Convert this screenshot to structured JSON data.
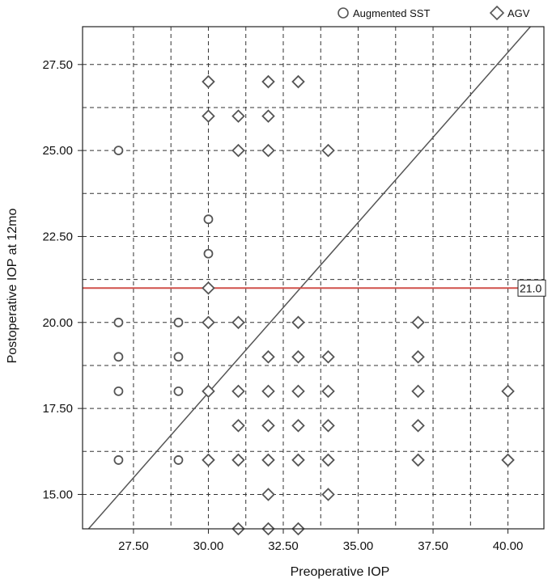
{
  "chart_data": {
    "type": "scatter",
    "xlabel": "Preoperative IOP",
    "ylabel": "Postoperative IOP at 12mo",
    "xlim": [
      25.8,
      41.2
    ],
    "ylim": [
      14.0,
      28.6
    ],
    "x_ticks": [
      27.5,
      30.0,
      32.5,
      35.0,
      37.5,
      40.0
    ],
    "x_tick_labels": [
      "27.50",
      "30.00",
      "32.50",
      "35.00",
      "37.50",
      "40.00"
    ],
    "y_ticks": [
      15.0,
      17.5,
      20.0,
      22.5,
      25.0,
      27.5
    ],
    "y_tick_labels": [
      "15.00",
      "17.50",
      "20.00",
      "22.50",
      "25.00",
      "27.50"
    ],
    "grid": true,
    "legend_position": "top-right",
    "reference_line": {
      "y": 21.0,
      "label": "21.0",
      "color": "#d0504a"
    },
    "identity_line": {
      "from": [
        26,
        14
      ],
      "to": [
        40.75,
        28.6
      ]
    },
    "series": [
      {
        "name": "Augmented SST",
        "marker": "circle",
        "points": [
          [
            27,
            25
          ],
          [
            27,
            20
          ],
          [
            27,
            19
          ],
          [
            27,
            18
          ],
          [
            27,
            16
          ],
          [
            29,
            20
          ],
          [
            29,
            19
          ],
          [
            29,
            18
          ],
          [
            29,
            16
          ],
          [
            30,
            23
          ],
          [
            30,
            22
          ]
        ]
      },
      {
        "name": "AGV",
        "marker": "diamond",
        "points": [
          [
            30,
            27
          ],
          [
            32,
            27
          ],
          [
            33,
            27
          ],
          [
            30,
            26
          ],
          [
            31,
            26
          ],
          [
            32,
            26
          ],
          [
            31,
            25
          ],
          [
            32,
            25
          ],
          [
            34,
            25
          ],
          [
            30,
            21
          ],
          [
            30,
            20
          ],
          [
            31,
            20
          ],
          [
            33,
            20
          ],
          [
            37,
            20
          ],
          [
            32,
            19
          ],
          [
            33,
            19
          ],
          [
            34,
            19
          ],
          [
            37,
            19
          ],
          [
            30,
            18
          ],
          [
            31,
            18
          ],
          [
            32,
            18
          ],
          [
            33,
            18
          ],
          [
            34,
            18
          ],
          [
            37,
            18
          ],
          [
            40,
            18
          ],
          [
            31,
            17
          ],
          [
            32,
            17
          ],
          [
            33,
            17
          ],
          [
            34,
            17
          ],
          [
            37,
            17
          ],
          [
            30,
            16
          ],
          [
            31,
            16
          ],
          [
            32,
            16
          ],
          [
            33,
            16
          ],
          [
            34,
            16
          ],
          [
            37,
            16
          ],
          [
            40,
            16
          ],
          [
            32,
            15
          ],
          [
            34,
            15
          ],
          [
            31,
            14
          ],
          [
            32,
            14
          ],
          [
            33,
            14
          ]
        ]
      }
    ]
  }
}
